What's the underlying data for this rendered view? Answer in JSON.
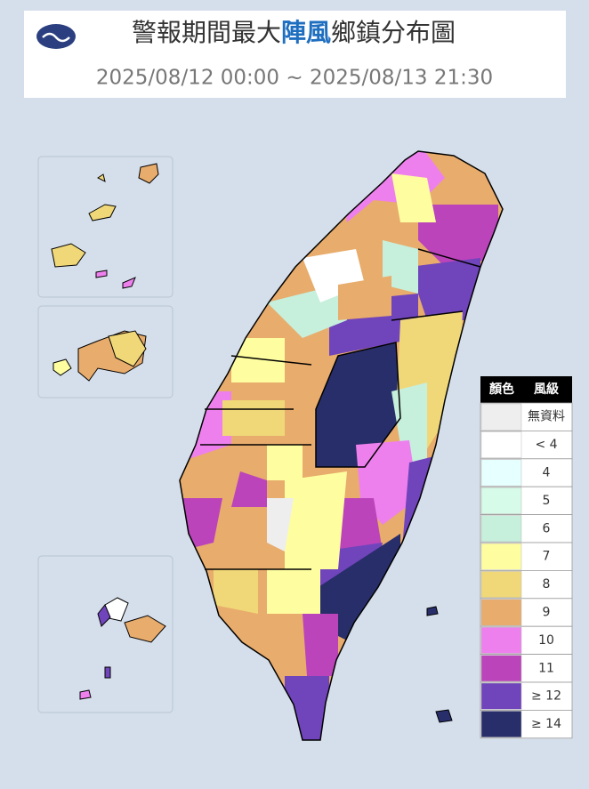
{
  "header": {
    "title_parts": [
      "警報期間最大",
      "陣風",
      "鄉鎮分布圖"
    ],
    "subtitle": "2025/08/12 00:00 ~ 2025/08/13 21:30"
  },
  "legend": {
    "headers": [
      "顏色",
      "風級"
    ],
    "rows": [
      {
        "label": "無資料",
        "color": "#eeeeee"
      },
      {
        "label": "< 4",
        "color": "#ffffff"
      },
      {
        "label": "4",
        "color": "#e6ffff"
      },
      {
        "label": "5",
        "color": "#d6fbe8"
      },
      {
        "label": "6",
        "color": "#c6efdc"
      },
      {
        "label": "7",
        "color": "#fefea0"
      },
      {
        "label": "8",
        "color": "#f0d878"
      },
      {
        "label": "9",
        "color": "#e8ac6c"
      },
      {
        "label": "10",
        "color": "#ee80ee"
      },
      {
        "label": "11",
        "color": "#bb44bb"
      },
      {
        "label": "≥ 12",
        "color": "#7044bb"
      },
      {
        "label": "≥ 14",
        "color": "#282e6a"
      }
    ]
  }
}
